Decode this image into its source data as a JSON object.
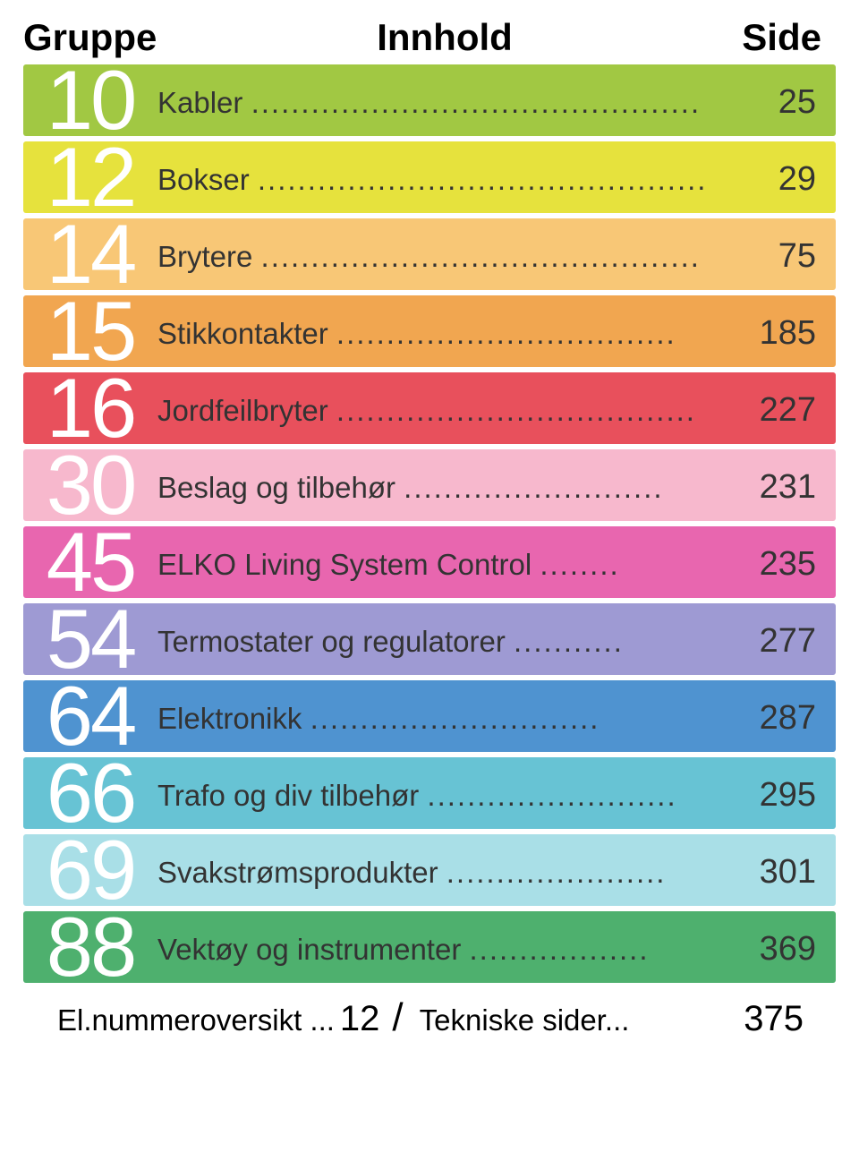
{
  "header": {
    "gruppe": "Gruppe",
    "innhold": "Innhold",
    "side": "Side"
  },
  "rows": [
    {
      "num": "10",
      "label": "Kabler",
      "dots": ".............................................",
      "page": "25",
      "bg": "#a1c843",
      "numColor": "#ffffff",
      "textColor": "#333333"
    },
    {
      "num": "12",
      "label": "Bokser",
      "dots": ".............................................",
      "page": "29",
      "bg": "#e6e23d",
      "numColor": "#ffffff",
      "textColor": "#333333"
    },
    {
      "num": "14",
      "label": "Brytere",
      "dots": "............................................",
      "page": "75",
      "bg": "#f8c776",
      "numColor": "#ffffff",
      "textColor": "#333333"
    },
    {
      "num": "15",
      "label": "Stikkontakter",
      "dots": "..................................",
      "page": "185",
      "bg": "#f1a650",
      "numColor": "#ffffff",
      "textColor": "#333333"
    },
    {
      "num": "16",
      "label": "Jordfeilbryter",
      "dots": "....................................",
      "page": "227",
      "bg": "#e8505c",
      "numColor": "#ffffff",
      "textColor": "#333333"
    },
    {
      "num": "30",
      "label": "Beslag og tilbehør",
      "dots": "..........................",
      "page": "231",
      "bg": "#f7b8cd",
      "numColor": "#ffffff",
      "textColor": "#333333"
    },
    {
      "num": "45",
      "label": "ELKO Living System Control",
      "dots": "........",
      "page": "235",
      "bg": "#e866af",
      "numColor": "#ffffff",
      "textColor": "#333333"
    },
    {
      "num": "54",
      "label": "Termostater og regulatorer",
      "dots": "...........",
      "page": "277",
      "bg": "#9e9ad3",
      "numColor": "#ffffff",
      "textColor": "#333333"
    },
    {
      "num": "64",
      "label": "Elektronikk",
      "dots": ".............................",
      "page": "287",
      "bg": "#4f93d0",
      "numColor": "#ffffff",
      "textColor": "#333333"
    },
    {
      "num": "66",
      "label": "Trafo og div tilbehør",
      "dots": ".........................",
      "page": "295",
      "bg": "#67c3d4",
      "numColor": "#ffffff",
      "textColor": "#333333"
    },
    {
      "num": "69",
      "label": "Svakstrømsprodukter",
      "dots": "......................",
      "page": "301",
      "bg": "#a9dfe7",
      "numColor": "#ffffff",
      "textColor": "#333333"
    },
    {
      "num": "88",
      "label": "Vektøy og instrumenter",
      "dots": "..................",
      "page": "369",
      "bg": "#4eb06e",
      "numColor": "#ffffff",
      "textColor": "#333333"
    }
  ],
  "footer": {
    "left_label": "El.nummeroversikt ...",
    "left_page": "12",
    "slash": "/",
    "right_label": "Tekniske sider...",
    "right_page": "375"
  },
  "colors": {
    "header_text": "#2a2a2a",
    "body_text": "#333333"
  }
}
